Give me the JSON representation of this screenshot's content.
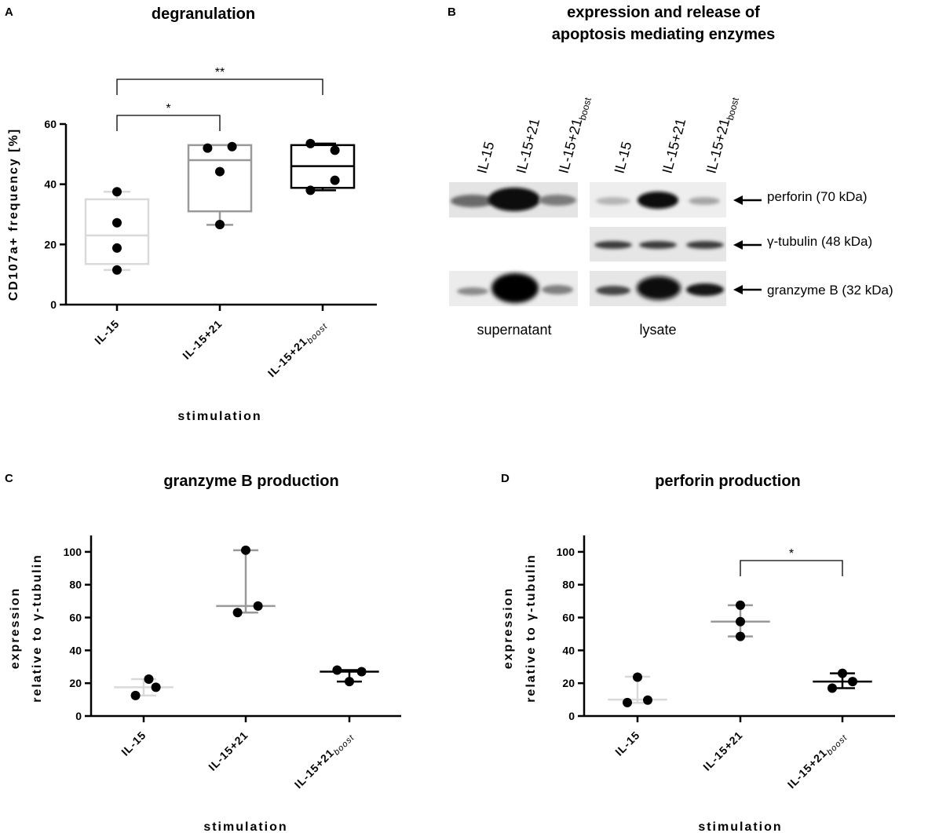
{
  "panels": {
    "A": {
      "letter": "A",
      "title": "degranulation",
      "ylabel": "CD107a+ frequency [%]",
      "xlabel": "stimulation",
      "yticks": [
        "0",
        "20",
        "40",
        "60"
      ],
      "categories": [
        {
          "main": "IL-15",
          "sub": ""
        },
        {
          "main": "IL-15+21",
          "sub": ""
        },
        {
          "main": "IL-15+21",
          "sub": "boost"
        }
      ],
      "sig": [
        "*",
        "**"
      ]
    },
    "B": {
      "letter": "B",
      "title_line1": "expression and release of",
      "title_line2": "apoptosis mediating enzymes",
      "lanes_supernatant": [
        {
          "main": "IL-15",
          "sub": ""
        },
        {
          "main": "IL-15+21",
          "sub": ""
        },
        {
          "main": "IL-15+21",
          "sub": "boost"
        }
      ],
      "lanes_lysate": [
        {
          "main": "IL-15",
          "sub": ""
        },
        {
          "main": "IL-15+21",
          "sub": ""
        },
        {
          "main": "IL-15+21",
          "sub": "boost"
        }
      ],
      "proteins": [
        "perforin (70 kDa)",
        "γ-tubulin (48 kDa)",
        "granzyme  B (32 kDa)"
      ],
      "fractions": [
        "supernatant",
        "lysate"
      ]
    },
    "C": {
      "letter": "C",
      "title": "granzyme B production",
      "ylabel1": "expression",
      "ylabel2": "relative to γ-tubulin",
      "xlabel": "stimulation",
      "yticks": [
        "0",
        "20",
        "40",
        "60",
        "80",
        "100"
      ],
      "categories": [
        {
          "main": "IL-15",
          "sub": ""
        },
        {
          "main": "IL-15+21",
          "sub": ""
        },
        {
          "main": "IL-15+21",
          "sub": "boost"
        }
      ]
    },
    "D": {
      "letter": "D",
      "title": "perforin production",
      "ylabel1": "expression",
      "ylabel2": "relative to γ-tubulin",
      "xlabel": "stimulation",
      "yticks": [
        "0",
        "20",
        "40",
        "60",
        "80",
        "100"
      ],
      "categories": [
        {
          "main": "IL-15",
          "sub": ""
        },
        {
          "main": "IL-15+21",
          "sub": ""
        },
        {
          "main": "IL-15+21",
          "sub": "boost"
        }
      ],
      "sig": [
        "*"
      ]
    }
  },
  "chart_data": [
    {
      "panel": "A",
      "type": "box",
      "title": "degranulation",
      "xlabel": "stimulation",
      "ylabel": "CD107a+ frequency [%]",
      "ylim": [
        0,
        60
      ],
      "categories": [
        "IL-15",
        "IL-15+21",
        "IL-15+21 boost"
      ],
      "colors": [
        "#d9d9d9",
        "#999999",
        "#000000"
      ],
      "boxes": [
        {
          "min": 11.5,
          "q1": 13.5,
          "median": 23,
          "q3": 35,
          "max": 37.5
        },
        {
          "min": 26.5,
          "q1": 31,
          "median": 48,
          "q3": 53,
          "max": 53
        },
        {
          "min": 38,
          "q1": 38.8,
          "median": 46,
          "q3": 53,
          "max": 53.5
        }
      ],
      "points": [
        [
          37.5,
          27.2,
          18.8,
          11.5
        ],
        [
          52,
          52.5,
          44.2,
          26.6
        ],
        [
          53.5,
          51.3,
          41.3,
          38
        ]
      ],
      "point_offsets": [
        [
          0,
          0,
          0,
          0
        ],
        [
          -0.12,
          0.12,
          0,
          0
        ],
        [
          -0.12,
          0.12,
          0.12,
          -0.12
        ]
      ],
      "comparisons": [
        {
          "from": 0,
          "to": 1,
          "label": "*"
        },
        {
          "from": 0,
          "to": 2,
          "label": "**"
        }
      ]
    },
    {
      "panel": "C",
      "type": "scatter",
      "title": "granzyme B production",
      "xlabel": "stimulation",
      "ylabel": "expression relative to γ-tubulin",
      "ylim": [
        0,
        110
      ],
      "categories": [
        "IL-15",
        "IL-15+21",
        "IL-15+21 boost"
      ],
      "colors": [
        "#d9d9d9",
        "#999999",
        "#000000"
      ],
      "summary": [
        {
          "center": 17.5,
          "low": 12.5,
          "high": 22.5
        },
        {
          "center": 67,
          "low": 63,
          "high": 101
        },
        {
          "center": 27,
          "low": 21,
          "high": 28
        }
      ],
      "points": [
        [
          22.5,
          17.5,
          12.5
        ],
        [
          101,
          67,
          63
        ],
        [
          28,
          27,
          21
        ]
      ],
      "point_offsets": [
        [
          0.05,
          0.12,
          -0.08
        ],
        [
          0,
          0.12,
          -0.08
        ],
        [
          -0.12,
          0.12,
          0
        ]
      ],
      "comparisons": []
    },
    {
      "panel": "D",
      "type": "scatter",
      "title": "perforin production",
      "xlabel": "stimulation",
      "ylabel": "expression relative to γ-tubulin",
      "ylim": [
        0,
        110
      ],
      "categories": [
        "IL-15",
        "IL-15+21",
        "IL-15+21 boost"
      ],
      "colors": [
        "#d9d9d9",
        "#999999",
        "#000000"
      ],
      "summary": [
        {
          "center": 10,
          "low": 8,
          "high": 24
        },
        {
          "center": 57.5,
          "low": 48.5,
          "high": 67.5
        },
        {
          "center": 21,
          "low": 17,
          "high": 26
        }
      ],
      "points": [
        [
          23.7,
          9.7,
          8.2
        ],
        [
          67.5,
          57.5,
          48.5
        ],
        [
          26,
          21,
          17
        ]
      ],
      "point_offsets": [
        [
          0,
          0.1,
          -0.1
        ],
        [
          0,
          0,
          0
        ],
        [
          0,
          0.1,
          -0.1
        ]
      ],
      "comparisons": [
        {
          "from": 1,
          "to": 2,
          "label": "*"
        }
      ]
    }
  ]
}
